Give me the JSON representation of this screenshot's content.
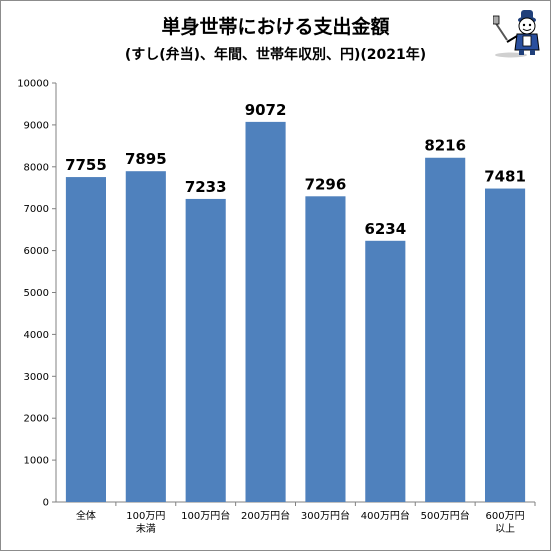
{
  "chart_data": {
    "type": "bar",
    "title": "単身世帯における支出金額",
    "subtitle": "(すし(弁当)、年間、世帯年収別、円)(2021年)",
    "categories": [
      [
        "全体"
      ],
      [
        "100万円",
        "未満"
      ],
      [
        "100万円台"
      ],
      [
        "200万円台"
      ],
      [
        "300万円台"
      ],
      [
        "400万円台"
      ],
      [
        "500万円台"
      ],
      [
        "600万円",
        "以上"
      ]
    ],
    "values": [
      7755,
      7895,
      7233,
      9072,
      7296,
      6234,
      8216,
      7481
    ],
    "ylim": [
      0,
      10000
    ],
    "yticks": [
      0,
      1000,
      2000,
      3000,
      4000,
      5000,
      6000,
      7000,
      8000,
      9000,
      10000
    ],
    "grid": false,
    "bar_color": "#4f81bd"
  },
  "mascot_icon": "mascot-character-icon"
}
